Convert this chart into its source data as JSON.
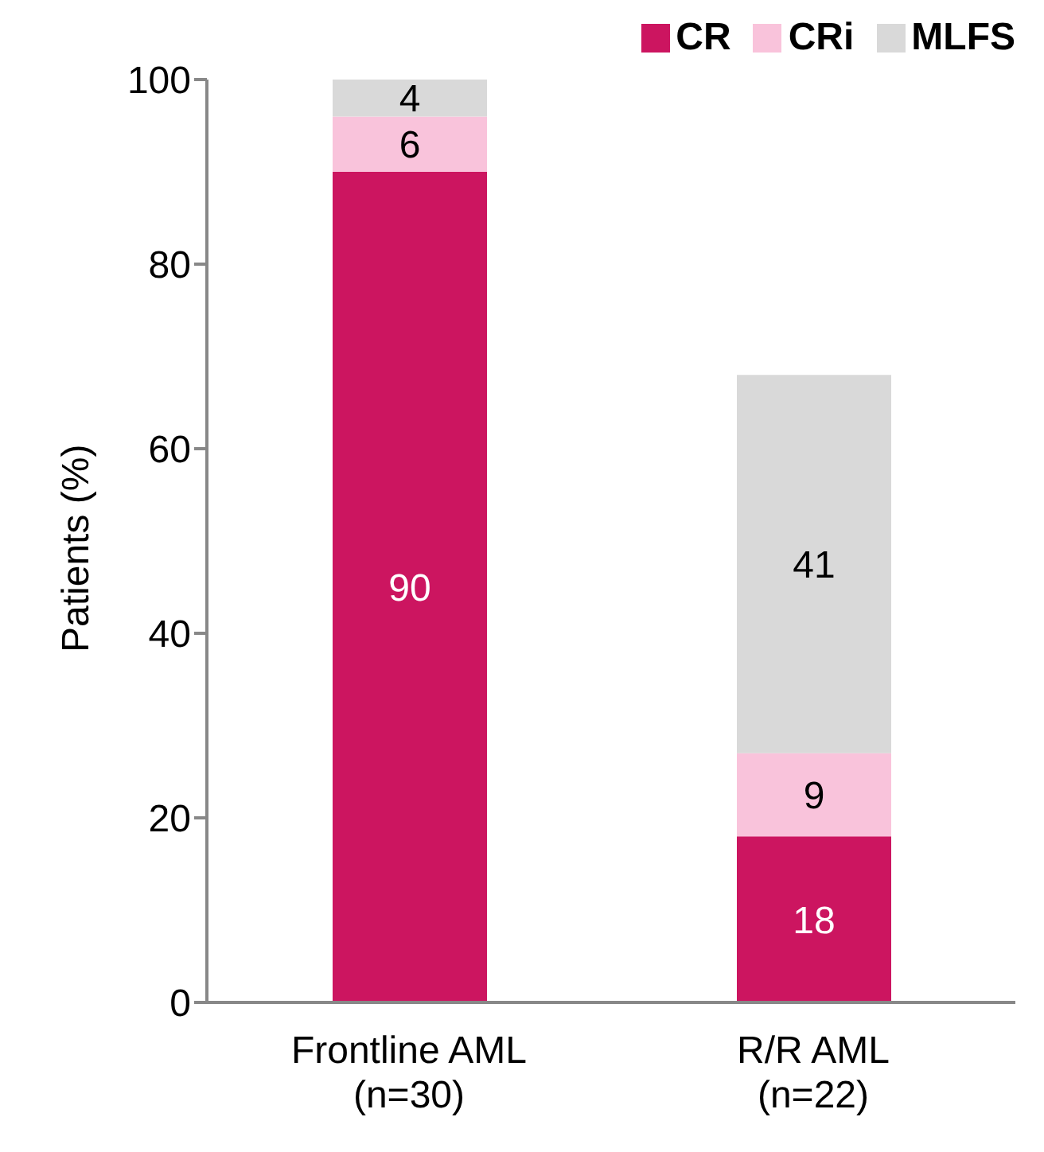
{
  "chart_data": {
    "type": "bar",
    "stacked": true,
    "ylabel": "Patients (%)",
    "categories": [
      "Frontline AML\n(n=30)",
      "R/R AML\n(n=22)"
    ],
    "series": [
      {
        "name": "CR",
        "color": "#cc1560",
        "values": [
          90,
          18
        ]
      },
      {
        "name": "CRi",
        "color": "#f9c3db",
        "values": [
          6,
          9
        ]
      },
      {
        "name": "MLFS",
        "color": "#d9d9d9",
        "values": [
          4,
          41
        ]
      }
    ],
    "ylim": [
      0,
      100
    ],
    "yticks": [
      0,
      20,
      40,
      60,
      80,
      100
    ],
    "grid": false,
    "legend": "top right",
    "data_labels": true
  }
}
